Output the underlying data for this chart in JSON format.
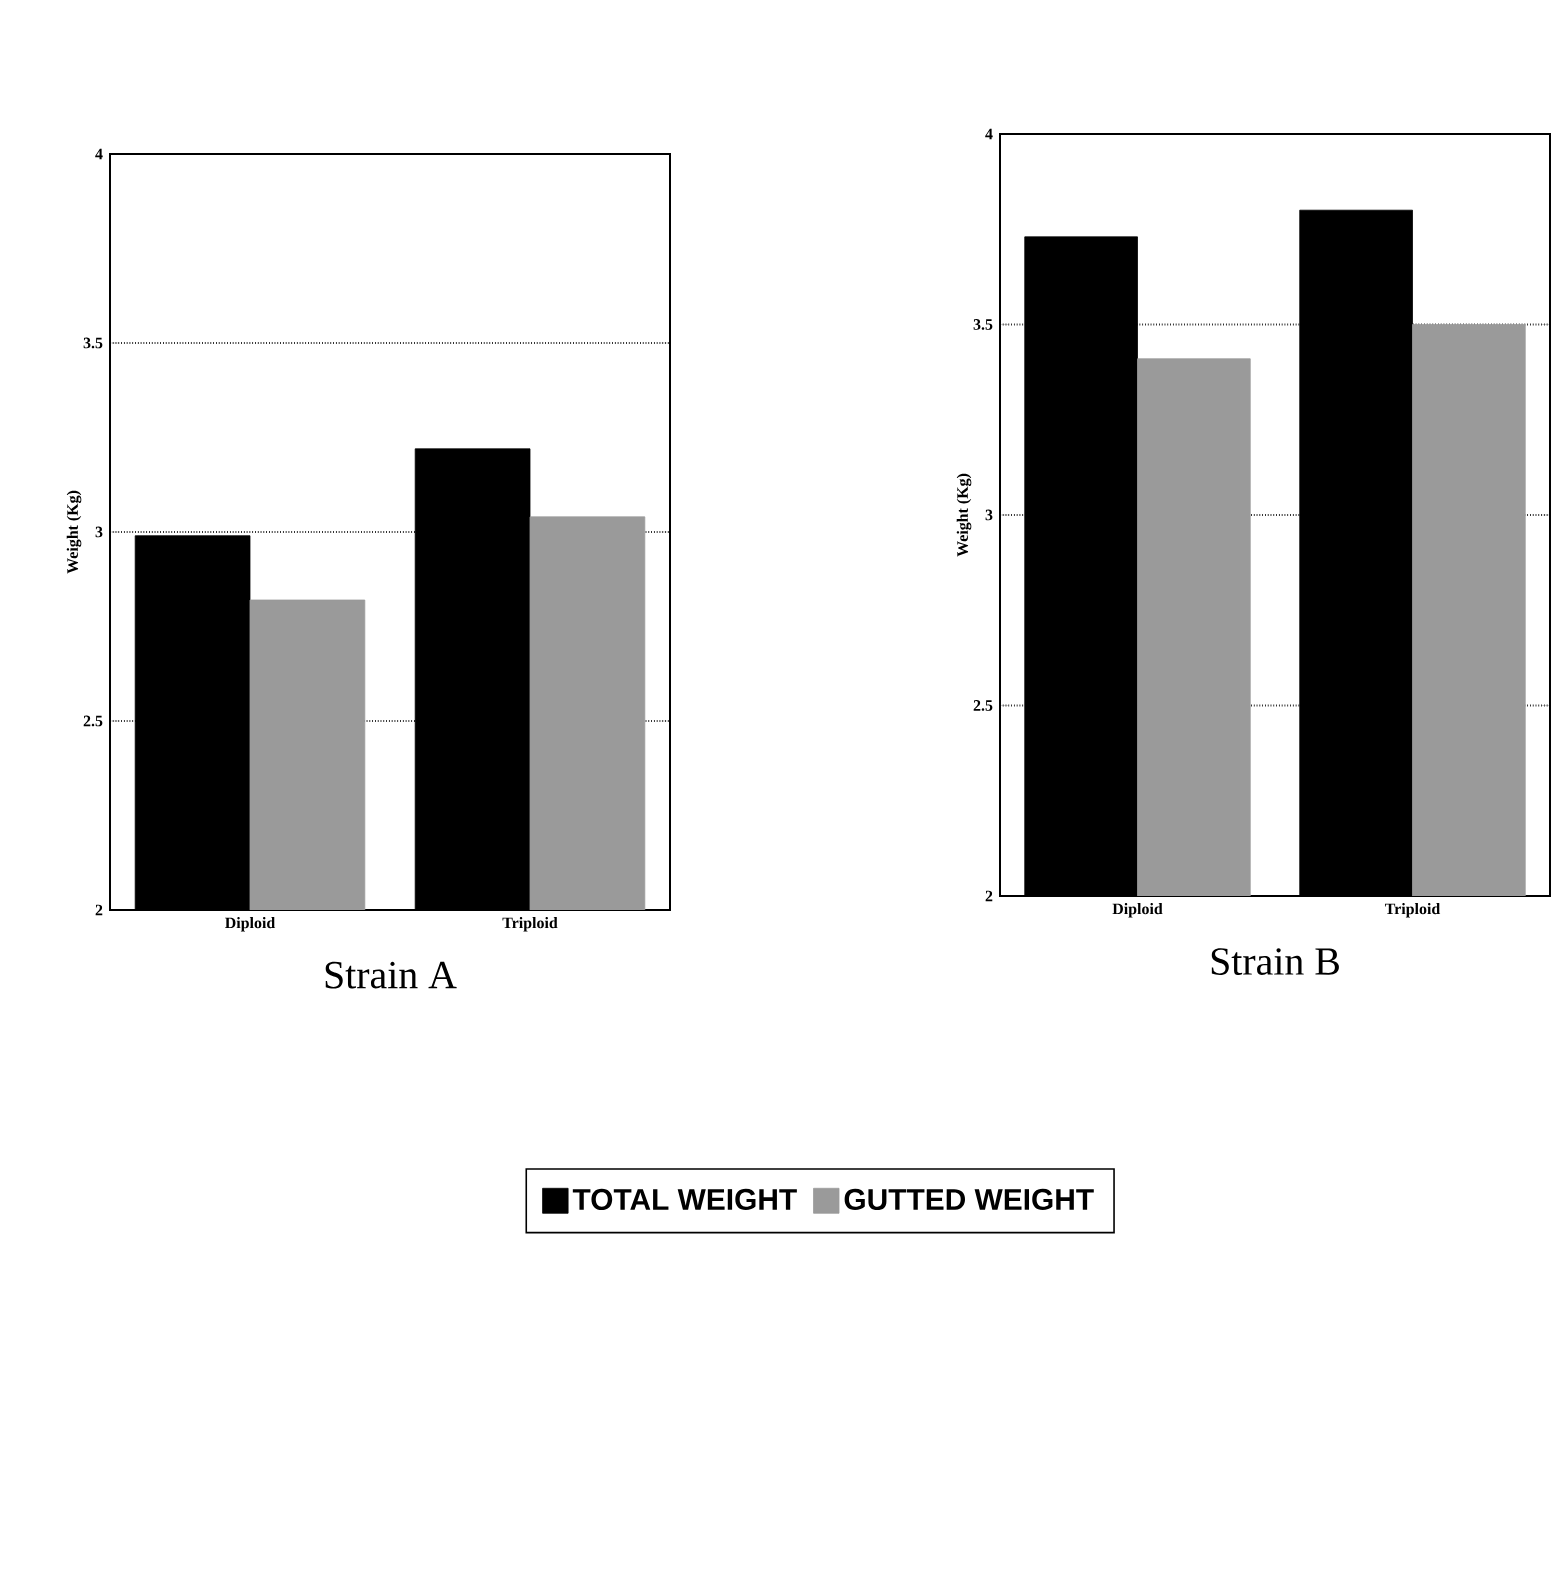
{
  "chart_data": [
    {
      "type": "bar",
      "title": "Strain A",
      "ylabel": "Weight (Kg)",
      "categories": [
        "Diploid",
        "Triploid"
      ],
      "series": [
        {
          "color": "#000000",
          "values": [
            2.99,
            3.22
          ]
        },
        {
          "color": "#9a9a9a",
          "values": [
            2.82,
            3.04
          ]
        }
      ],
      "ylim": [
        2,
        4
      ],
      "yticks": [
        2,
        2.5,
        3,
        3.5,
        4
      ],
      "grid": "y",
      "legend": false
    },
    {
      "type": "bar",
      "title": "Strain B",
      "ylabel": "Weight (Kg)",
      "categories": [
        "Diploid",
        "Triploid"
      ],
      "series": [
        {
          "name": "TOTAL WEIGHT",
          "color": "#000000",
          "values": [
            3.73,
            3.8
          ]
        },
        {
          "name": "GUTTED WEIGHT",
          "color": "#9a9a9a",
          "values": [
            3.41,
            3.5
          ]
        }
      ],
      "ylim": [
        2,
        4
      ],
      "yticks": [
        2,
        2.5,
        3,
        3.5,
        4
      ],
      "grid": "y",
      "legend": "bottom"
    }
  ]
}
